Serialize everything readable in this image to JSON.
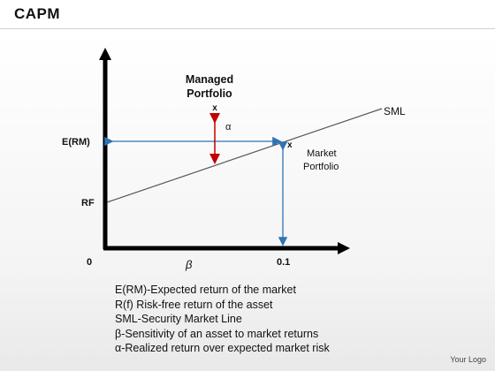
{
  "title": "CAPM",
  "diagram": {
    "sml_label": "SML",
    "erm_label": "E(RM)",
    "rf_label": "RF",
    "origin_label": "0",
    "beta_symbol": "β",
    "beta_one_label": "0.1",
    "managed_label_line1": "Managed",
    "managed_label_line2": "Portfolio",
    "managed_marker": "x",
    "alpha_symbol": "α",
    "market_marker": "x",
    "market_label_line1": "Market",
    "market_label_line2": "Portfolio",
    "colors": {
      "axis": "#000000",
      "sml": "#555555",
      "dashed": "#2e74b5",
      "alpha_arrow": "#c00000"
    }
  },
  "legend": [
    "E(RM)-Expected return of the market",
    "R(f) Risk-free return of the asset",
    "SML-Security Market Line",
    "β-Sensitivity of an asset to market returns",
    "α-Realized return over expected market risk"
  ],
  "logo": "Your Logo"
}
